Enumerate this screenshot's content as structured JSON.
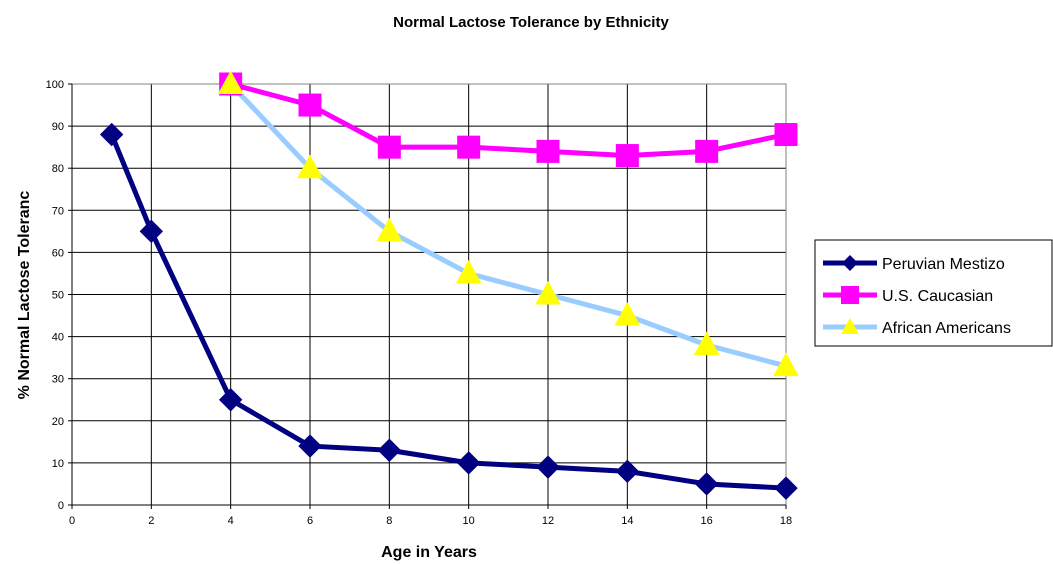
{
  "chart_data": {
    "type": "line",
    "title": "Normal Lactose Tolerance by Ethnicity",
    "xlabel": "Age in Years",
    "ylabel": "% Normal Lactose Toleranc",
    "xlim": [
      0,
      18
    ],
    "ylim": [
      0,
      100
    ],
    "x_ticks": [
      0,
      2,
      4,
      6,
      8,
      10,
      12,
      14,
      16,
      18
    ],
    "y_ticks": [
      0,
      10,
      20,
      30,
      40,
      50,
      60,
      70,
      80,
      90,
      100
    ],
    "grid": true,
    "legend_position": "right",
    "series": [
      {
        "name": "Peruvian Mestizo",
        "color": "#000080",
        "marker": "diamond",
        "marker_color": "#000080",
        "points": [
          [
            1,
            88
          ],
          [
            2,
            65
          ],
          [
            4,
            25
          ],
          [
            6,
            14
          ],
          [
            8,
            13
          ],
          [
            10,
            10
          ],
          [
            12,
            9
          ],
          [
            14,
            8
          ],
          [
            16,
            5
          ],
          [
            18,
            4
          ]
        ]
      },
      {
        "name": "U.S. Caucasian",
        "color": "#FF00FF",
        "marker": "square",
        "marker_color": "#FF00FF",
        "points": [
          [
            4,
            100
          ],
          [
            6,
            95
          ],
          [
            8,
            85
          ],
          [
            10,
            85
          ],
          [
            12,
            84
          ],
          [
            14,
            83
          ],
          [
            16,
            84
          ],
          [
            18,
            88
          ]
        ]
      },
      {
        "name": "African Americans",
        "color": "#99CCFF",
        "marker": "triangle",
        "marker_color": "#FFFF00",
        "points": [
          [
            4,
            100
          ],
          [
            6,
            80
          ],
          [
            8,
            65
          ],
          [
            10,
            55
          ],
          [
            12,
            50
          ],
          [
            14,
            45
          ],
          [
            16,
            38
          ],
          [
            18,
            33
          ]
        ]
      }
    ]
  }
}
